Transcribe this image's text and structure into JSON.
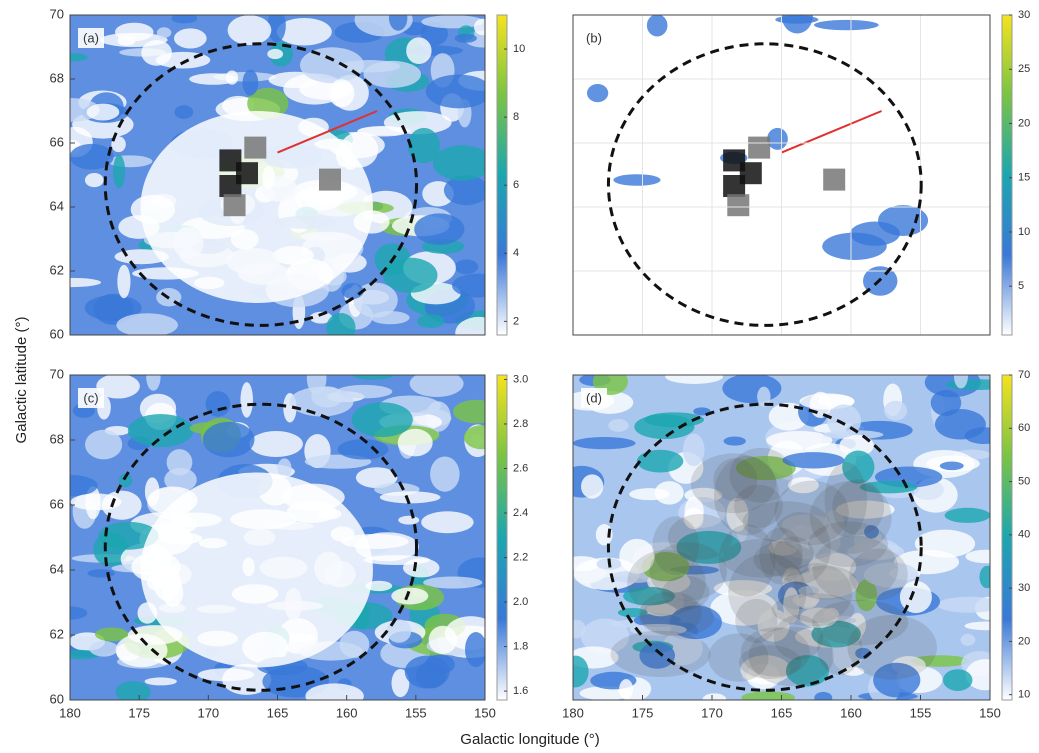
{
  "axis_labels": {
    "x": "Galactic longitude (°)",
    "y": "Galactic latitude (°)"
  },
  "chart_data": [
    {
      "type": "heatmap",
      "label": "(a)",
      "xlim": [
        180,
        150
      ],
      "ylim": [
        60,
        70
      ],
      "yticks": [
        60,
        62,
        64,
        66,
        68,
        70
      ],
      "colorbar": {
        "lim": [
          1.6,
          11
        ],
        "ticks": [
          2,
          4,
          6,
          8,
          10
        ]
      },
      "colors": [
        "#ffffff",
        "#3a78d8",
        "#1ba6b0",
        "#7ac443",
        "#f5e31d"
      ]
    },
    {
      "type": "heatmap",
      "label": "(b)",
      "xlim": [
        180,
        150
      ],
      "ylim": [
        60,
        70
      ],
      "grid": true,
      "colorbar": {
        "lim": [
          0.5,
          30
        ],
        "ticks": [
          5,
          10,
          15,
          20,
          25,
          30
        ]
      },
      "colors": [
        "#ffffff",
        "#3a78d8",
        "#1ba6b0",
        "#7ac443",
        "#f5e31d"
      ]
    },
    {
      "type": "heatmap",
      "label": "(c)",
      "xlim": [
        180,
        150
      ],
      "ylim": [
        60,
        70
      ],
      "xticks": [
        180,
        175,
        170,
        165,
        160,
        155,
        150
      ],
      "yticks": [
        60,
        62,
        64,
        66,
        68,
        70
      ],
      "colorbar": {
        "lim": [
          1.56,
          3.02
        ],
        "ticks": [
          1.6,
          1.8,
          {
            "value": 2,
            "label": "2.0"
          },
          2.2,
          2.4,
          2.6,
          2.8,
          {
            "value": 3,
            "label": "3.0"
          }
        ]
      },
      "colors": [
        "#ffffff",
        "#3a78d8",
        "#1ba6b0",
        "#7ac443",
        "#f5e31d"
      ]
    },
    {
      "type": "heatmap",
      "label": "(d)",
      "xlim": [
        180,
        150
      ],
      "ylim": [
        60,
        70
      ],
      "xticks": [
        180,
        175,
        170,
        165,
        160,
        155,
        150
      ],
      "colorbar": {
        "lim": [
          9,
          70
        ],
        "ticks": [
          10,
          20,
          30,
          40,
          50,
          60,
          70
        ]
      },
      "colors": [
        "#ffffff",
        "#3a78d8",
        "#1ba6b0",
        "#7ac443",
        "#f5e31d"
      ]
    }
  ]
}
